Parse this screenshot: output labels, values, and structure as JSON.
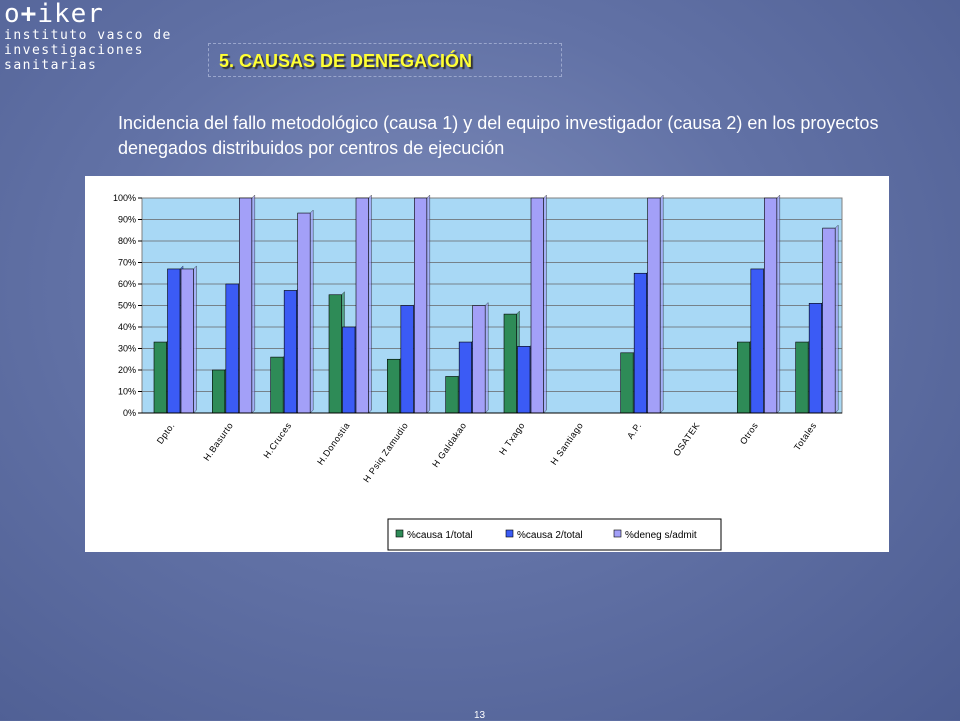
{
  "logo": {
    "brand_left": "o",
    "brand_plus": "+",
    "brand_right": "iker",
    "line1": "instituto vasco de",
    "line2": "investigaciones",
    "line3": "sanitarias"
  },
  "section_title": "5. CAUSAS DE DENEGACIÓN",
  "description": "Incidencia del fallo metodológico (causa 1) y del equipo investigador (causa 2) en los proyectos denegados distribuidos por centros de ejecución",
  "page_number": "13",
  "chart_data": {
    "type": "bar",
    "categories": [
      "Dpto.",
      "H.Basurto",
      "H.Cruces",
      "H.Donostia",
      "H Psiq Zamudio",
      "H Galdakao",
      "H Txago",
      "H Santiago",
      "A.P.",
      "OSATEK",
      "Otros",
      "Totales"
    ],
    "series": [
      {
        "name": "%causa 1/total",
        "color": "#2e8b57",
        "values": [
          33,
          20,
          26,
          55,
          25,
          17,
          46,
          0,
          28,
          0,
          33,
          33
        ]
      },
      {
        "name": "%causa 2/total",
        "color": "#3b5bf5",
        "values": [
          67,
          60,
          57,
          40,
          50,
          33,
          31,
          0,
          65,
          0,
          67,
          51
        ]
      },
      {
        "name": "%deneg s/admit",
        "color": "#a3a0f8",
        "values": [
          67,
          100,
          93,
          100,
          100,
          50,
          100,
          0,
          100,
          0,
          100,
          86
        ]
      }
    ],
    "yticks": [
      "0%",
      "10%",
      "20%",
      "30%",
      "40%",
      "50%",
      "60%",
      "70%",
      "80%",
      "90%",
      "100%"
    ],
    "ylim": [
      0,
      100
    ],
    "grid": true,
    "legend_position": "bottom"
  }
}
